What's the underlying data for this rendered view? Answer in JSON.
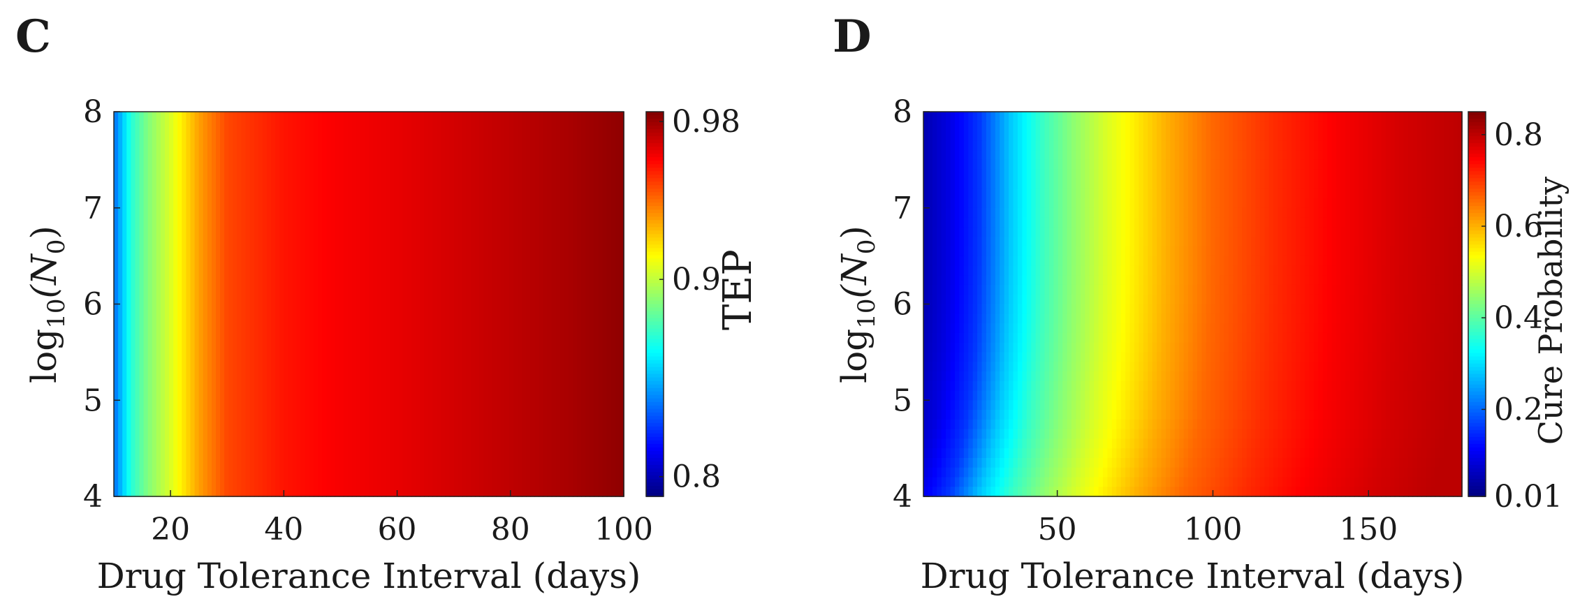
{
  "panels": [
    {
      "panel_label": "C",
      "colormap": "jet",
      "colorbar": {
        "label": "TEP",
        "range": [
          0.79,
          0.985
        ],
        "ticks": [
          0.8,
          0.9,
          0.98
        ],
        "tick_labels": [
          "0.8",
          "0.9",
          "0.98"
        ]
      }
    },
    {
      "panel_label": "D",
      "colormap": "jet",
      "colorbar": {
        "label": "Cure Probability",
        "range": [
          0.01,
          0.85
        ],
        "ticks": [
          0.01,
          0.2,
          0.4,
          0.6,
          0.8
        ],
        "tick_labels": [
          "0.01",
          "0.2",
          "0.4",
          "0.6",
          "0.8"
        ]
      }
    }
  ],
  "chart_data": [
    {
      "type": "heatmap",
      "title": "",
      "xlabel": "Drug Tolerance Interval (days)",
      "ylabel_text": "log",
      "ylabel_sub": "10",
      "ylabel_arg": "(N",
      "ylabel_arg_sub": "0",
      "ylabel_close": ")",
      "xlim": [
        10,
        100
      ],
      "ylim": [
        4,
        8
      ],
      "xticks": [
        20,
        40,
        60,
        80,
        100
      ],
      "xtick_labels": [
        "20",
        "40",
        "60",
        "80",
        "100"
      ],
      "yticks": [
        4,
        5,
        6,
        7,
        8
      ],
      "ytick_labels": [
        "4",
        "5",
        "6",
        "7",
        "8"
      ],
      "value_profile_x": [
        10,
        13,
        16,
        20,
        25,
        30,
        40,
        50,
        60,
        70,
        80,
        90,
        100
      ],
      "value_profile": [
        0.835,
        0.87,
        0.888,
        0.905,
        0.93,
        0.947,
        0.957,
        0.962,
        0.965,
        0.969,
        0.973,
        0.977,
        0.982
      ],
      "depends_on_y": false,
      "colorbar_label": "TEP"
    },
    {
      "type": "heatmap",
      "title": "",
      "xlabel": "Drug Tolerance Interval (days)",
      "ylabel_text": "log",
      "ylabel_sub": "10",
      "ylabel_arg": "(N",
      "ylabel_arg_sub": "0",
      "ylabel_close": ")",
      "xlim": [
        7,
        180
      ],
      "ylim": [
        4,
        8
      ],
      "xticks": [
        50,
        100,
        150
      ],
      "xtick_labels": [
        "50",
        "100",
        "150"
      ],
      "yticks": [
        4,
        5,
        6,
        7,
        8
      ],
      "ytick_labels": [
        "4",
        "5",
        "6",
        "7",
        "8"
      ],
      "value_profile_x": [
        7,
        15,
        25,
        35,
        45,
        55,
        65,
        75,
        85,
        100,
        120,
        140,
        160,
        180
      ],
      "value_profile": [
        0.05,
        0.09,
        0.16,
        0.28,
        0.37,
        0.44,
        0.5,
        0.55,
        0.6,
        0.66,
        0.71,
        0.75,
        0.78,
        0.8
      ],
      "y_shift_days_at_ylim_min": -10,
      "depends_on_y": true,
      "colorbar_label": "Cure Probability"
    }
  ]
}
